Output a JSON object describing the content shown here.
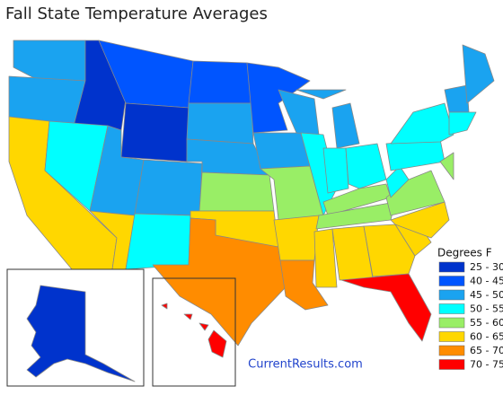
{
  "title": "Fall State Temperature Averages",
  "legend": {
    "title": "Degrees F",
    "items": [
      {
        "label": "25 - 30",
        "color": "#0033cc"
      },
      {
        "label": "40 - 45",
        "color": "#0055ff"
      },
      {
        "label": "45 - 50",
        "color": "#1aa3f0"
      },
      {
        "label": "50 - 55",
        "color": "#00ffff"
      },
      {
        "label": "55 - 60",
        "color": "#99ee66"
      },
      {
        "label": "60 - 65",
        "color": "#ffd700"
      },
      {
        "label": "65 - 70",
        "color": "#ff8c00"
      },
      {
        "label": "70 - 75",
        "color": "#ff0000"
      }
    ]
  },
  "watermark": "CurrentResults.com"
}
